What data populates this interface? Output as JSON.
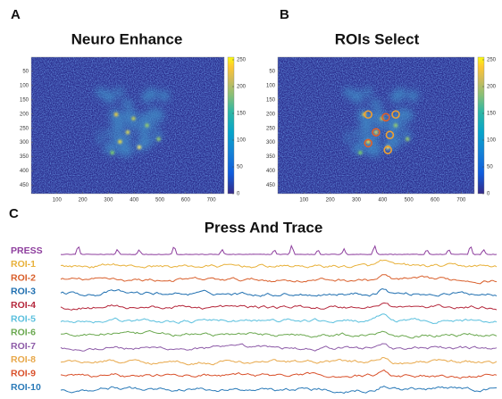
{
  "panels": [
    {
      "label": "A",
      "title": "Neuro Enhance",
      "xlim": [
        0,
        750
      ],
      "ylim": [
        0,
        480
      ],
      "clim": [
        0,
        255
      ],
      "xticks": [
        100,
        200,
        300,
        400,
        500,
        600,
        700
      ],
      "yticks": [
        50,
        100,
        150,
        200,
        250,
        300,
        350,
        400,
        450
      ],
      "colorbar_ticks": [
        0,
        50,
        100,
        150,
        200,
        250
      ]
    },
    {
      "label": "B",
      "title": "ROIs Select",
      "xlim": [
        0,
        750
      ],
      "ylim": [
        0,
        480
      ],
      "clim": [
        0,
        255
      ],
      "xticks": [
        100,
        200,
        300,
        400,
        500,
        600,
        700
      ],
      "yticks": [
        50,
        100,
        150,
        200,
        250,
        300,
        350,
        400,
        450
      ],
      "colorbar_ticks": [
        0,
        50,
        100,
        150,
        200,
        250
      ]
    }
  ],
  "traces": {
    "label": "C",
    "title": "Press And Trace",
    "rows": [
      {
        "name": "PRESS",
        "color": "#8e3f9e"
      },
      {
        "name": "ROI-1",
        "color": "#e8b13a"
      },
      {
        "name": "ROI-2",
        "color": "#d95f2b"
      },
      {
        "name": "ROI-3",
        "color": "#1f6fb0"
      },
      {
        "name": "ROI-4",
        "color": "#b5283c"
      },
      {
        "name": "ROI-5",
        "color": "#5bc0de"
      },
      {
        "name": "ROI-6",
        "color": "#6aa84f"
      },
      {
        "name": "ROI-7",
        "color": "#8e5ca8"
      },
      {
        "name": "ROI-8",
        "color": "#e8a84a"
      },
      {
        "name": "ROI-9",
        "color": "#d9502a"
      },
      {
        "name": "ROI-10",
        "color": "#2a7ab8"
      }
    ]
  }
}
